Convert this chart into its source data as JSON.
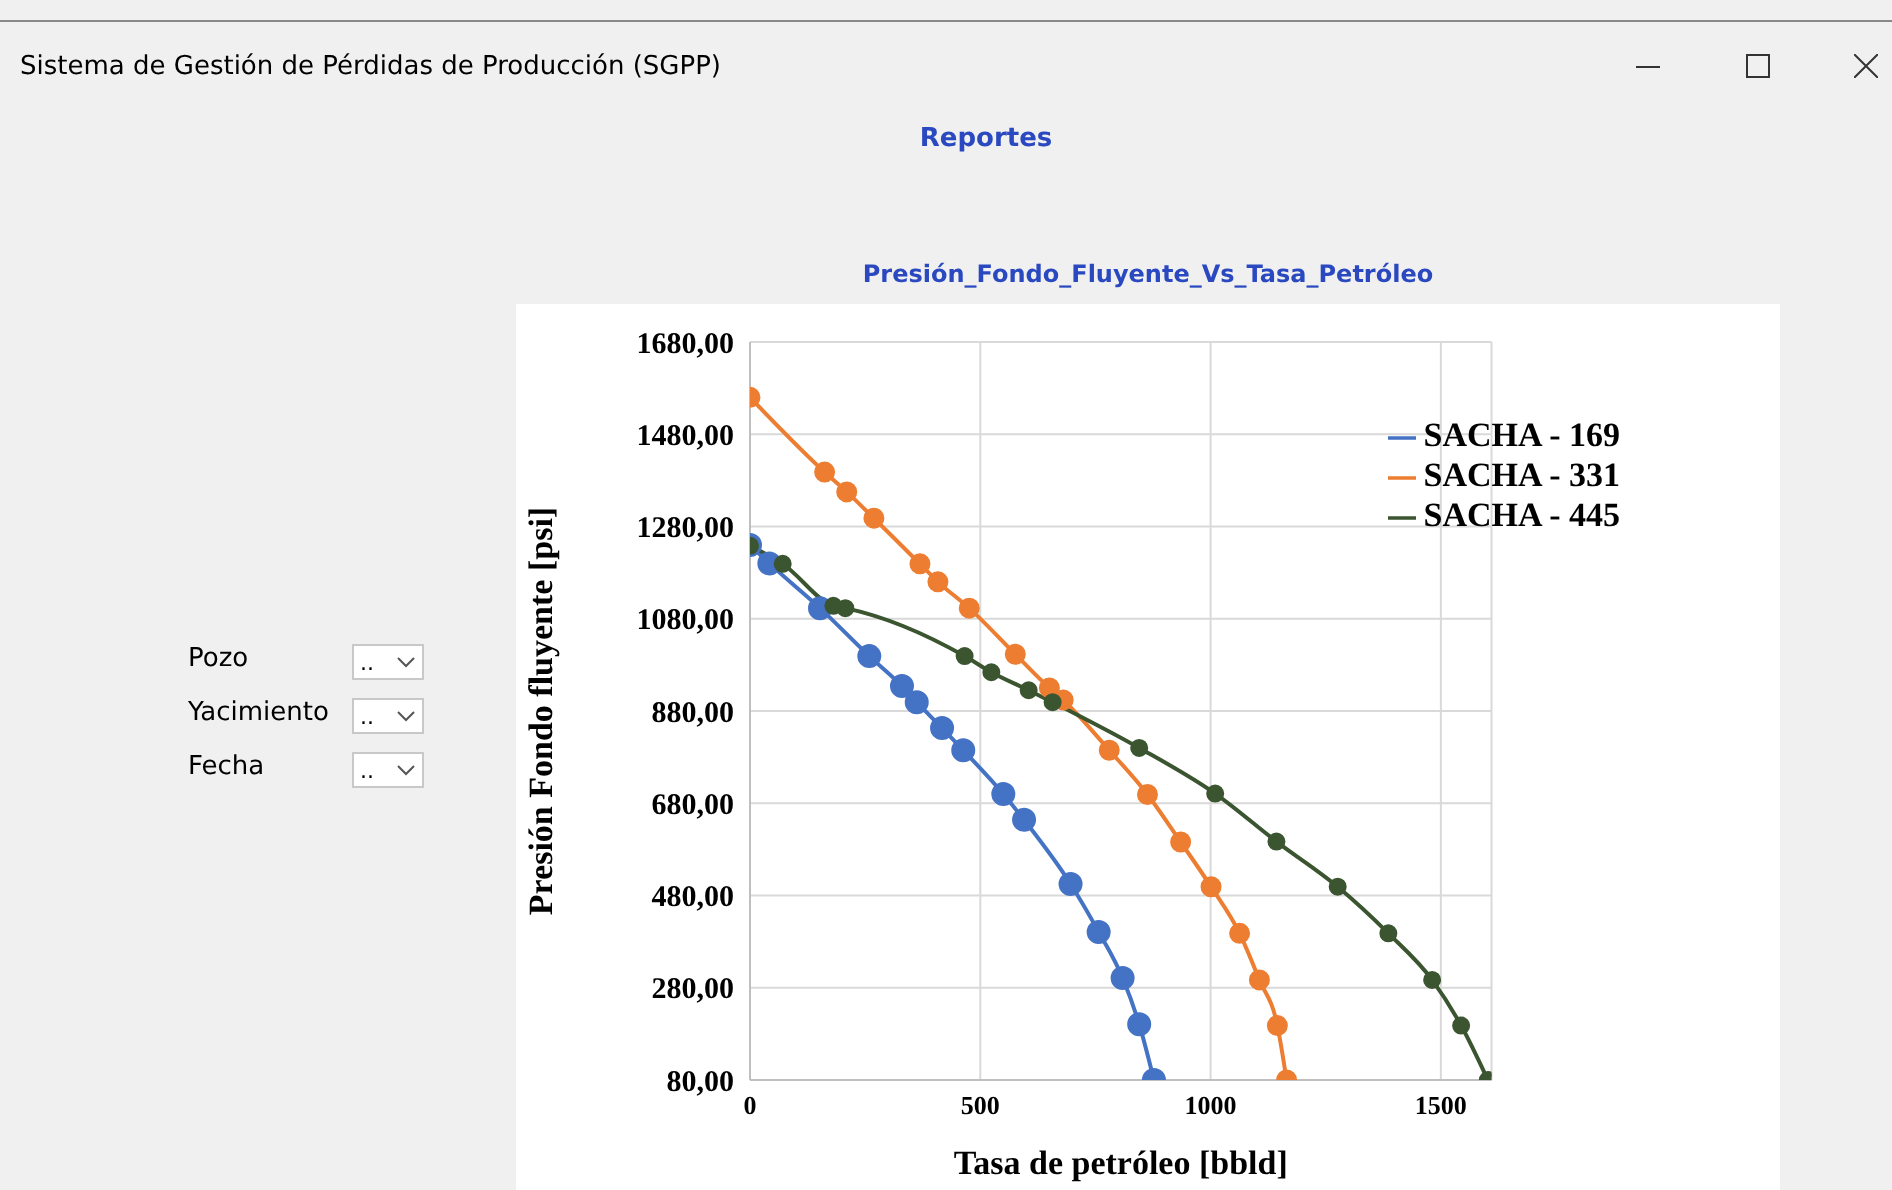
{
  "chart_data": {
    "type": "line",
    "title": "Presión_Fondo_Fluyente_Vs_Tasa_Petróleo",
    "subtitle": "Reportes",
    "xlabel": "Tasa de petróleo [bbld]",
    "ylabel": "Presión Fondo  fluyente [psi]",
    "annotations": [
      "Sistema de Gestión de Pérdidas de Producción (SGPP)",
      "Pozo",
      "Yacimiento",
      "Fecha",
      "..",
      "..",
      ".."
    ],
    "series": [
      {
        "name": "SACHA - 169",
        "color": "#4472c4",
        "x": [
          0,
          42,
          152,
          259,
          330,
          362,
          417,
          463,
          550,
          595,
          696,
          757,
          809,
          845,
          877
        ],
        "values": [
          1240,
          1200,
          1103,
          999,
          934,
          899,
          843,
          795,
          700,
          644,
          505,
          401,
          301,
          201,
          80
        ]
      },
      {
        "name": "SACHA - 331",
        "color": "#ed7d31",
        "x": [
          0,
          162,
          210,
          269,
          369,
          408,
          476,
          576,
          650,
          680,
          780,
          863,
          935,
          1001,
          1063,
          1106,
          1145,
          1165
        ],
        "values": [
          1560,
          1398,
          1355,
          1298,
          1199,
          1160,
          1103,
          1003,
          930,
          904,
          795,
          699,
          596,
          499,
          398,
          297,
          198,
          80
        ]
      },
      {
        "name": "SACHA - 445",
        "color": "#3b5530",
        "x": [
          0,
          71,
          181,
          207,
          466,
          524,
          605,
          657,
          845,
          1010,
          1143,
          1276,
          1386,
          1481,
          1544,
          1602
        ],
        "values": [
          1238,
          1199,
          1108,
          1103,
          999,
          964,
          925,
          899,
          800,
          701,
          597,
          499,
          398,
          297,
          198,
          80
        ]
      }
    ],
    "xlim": [
      0,
      1610
    ],
    "xticks": [
      0,
      500,
      1000,
      1500
    ],
    "ylim": [
      80,
      1680
    ],
    "yticks": [
      {
        "value": 80,
        "label": "80,00"
      },
      {
        "value": 280,
        "label": "280,00"
      },
      {
        "value": 480,
        "label": "480,00"
      },
      {
        "value": 680,
        "label": "680,00"
      },
      {
        "value": 880,
        "label": "880,00"
      },
      {
        "value": 1080,
        "label": "1080,00"
      },
      {
        "value": 1280,
        "label": "1280,00"
      },
      {
        "value": 1480,
        "label": "1480,00"
      },
      {
        "value": 1680,
        "label": "1680,00"
      }
    ],
    "grid": true,
    "legend": "top right",
    "marker": "circle",
    "line_style": "solid"
  }
}
